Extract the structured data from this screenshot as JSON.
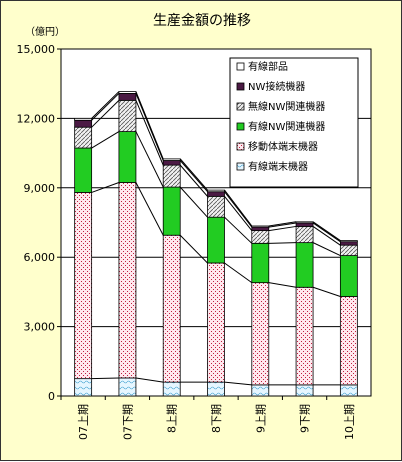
{
  "colors": {
    "background": "#ffffcc",
    "yuusen_buhin": "#ffffff",
    "nw_setsuzoku": "#4b1a44",
    "musen_nw": "#e0e0e0",
    "yuusen_nw": "#22cc22",
    "idou_tanmatsu": "#ffe8e8",
    "yuusen_tanmatsu": "#d8f2ff"
  },
  "chart_data": {
    "type": "bar",
    "stacked": true,
    "title": "生産金額の推移",
    "ylabel": "（億円）",
    "xlabel": "",
    "ylim": [
      0,
      15000
    ],
    "yticks": [
      0,
      3000,
      6000,
      9000,
      12000,
      15000
    ],
    "ytick_labels": [
      "0",
      "3,000",
      "6,000",
      "9,000",
      "12,000",
      "15,000"
    ],
    "grid": true,
    "legend_position": "top-right",
    "categories": [
      "07上期",
      "07下期",
      "8上期",
      "8下期",
      "9上期",
      "9下期",
      "10上期"
    ],
    "series": [
      {
        "name": "有線端末機器",
        "values": [
          750,
          780,
          600,
          600,
          480,
          480,
          480
        ]
      },
      {
        "name": "移動体端末機器",
        "values": [
          8050,
          8450,
          6350,
          5150,
          4420,
          4220,
          3820
        ]
      },
      {
        "name": "有線NW関連機器",
        "values": [
          1920,
          2200,
          2080,
          1980,
          1700,
          1930,
          1770
        ]
      },
      {
        "name": "無線NW関連機器",
        "values": [
          900,
          1350,
          950,
          900,
          550,
          700,
          450
        ]
      },
      {
        "name": "NW接続機器",
        "values": [
          300,
          300,
          200,
          200,
          150,
          150,
          150
        ]
      },
      {
        "name": "有線部品",
        "values": [
          80,
          80,
          70,
          70,
          50,
          50,
          50
        ]
      }
    ],
    "legend_order": [
      "有線部品",
      "NW接続機器",
      "無線NW関連機器",
      "有線NW関連機器",
      "移動体端末機器",
      "有線端末機器"
    ]
  }
}
